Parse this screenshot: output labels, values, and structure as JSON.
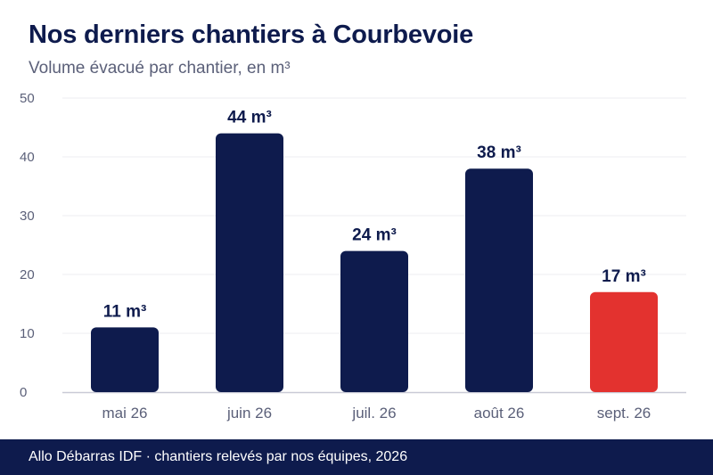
{
  "title": "Nos derniers chantiers à Courbevoie",
  "subtitle": "Volume évacué par chantier, en m³",
  "footer": "Allo Débarras IDF · chantiers relevés par nos équipes, 2026",
  "colors": {
    "bar": "#0e1b4d",
    "highlight": "#e3322f",
    "grid": "#ececf1",
    "axis": "#c9cad6",
    "tick_text": "#5b6079",
    "label_text": "#0e1b4d"
  },
  "chart_data": {
    "type": "bar",
    "categories": [
      "mai 26",
      "juin 26",
      "juil. 26",
      "août 26",
      "sept. 26"
    ],
    "values": [
      11,
      44,
      24,
      38,
      17
    ],
    "data_labels": [
      "11 m³",
      "44 m³",
      "24 m³",
      "38 m³",
      "17 m³"
    ],
    "highlight_index": 4,
    "ylim": [
      0,
      50
    ],
    "yticks": [
      0,
      10,
      20,
      30,
      40,
      50
    ],
    "grid": true,
    "xlabel": "",
    "ylabel": ""
  }
}
